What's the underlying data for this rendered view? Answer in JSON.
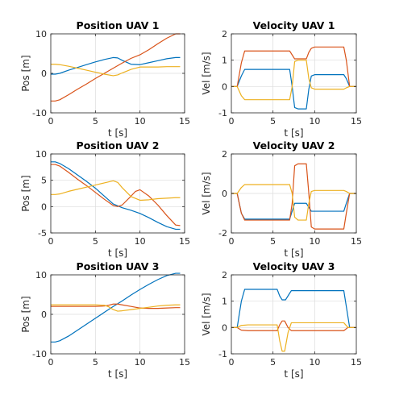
{
  "colors": [
    "#0072BD",
    "#D95319",
    "#EDB120"
  ],
  "chart_data": [
    {
      "type": "line",
      "title": "Position UAV 1",
      "xlabel": "t [s]",
      "ylabel": "Pos [m]",
      "xlim": [
        0,
        15
      ],
      "ylim": [
        -10,
        10
      ],
      "xticks": [
        0,
        5,
        10,
        15
      ],
      "yticks": [
        -10,
        0,
        10
      ],
      "grid": true,
      "series": [
        {
          "x": [
            0,
            0.5,
            1,
            2,
            3,
            4,
            5,
            6,
            7,
            7.5,
            8,
            9,
            10,
            11,
            12,
            13,
            14,
            14.5
          ],
          "y": [
            -0.2,
            -0.2,
            0,
            0.8,
            1.5,
            2.2,
            2.9,
            3.5,
            4,
            3.9,
            3.3,
            2.3,
            2.2,
            2.7,
            3.2,
            3.7,
            4,
            4
          ]
        },
        {
          "x": [
            0,
            0.5,
            1,
            2,
            3,
            4,
            5,
            6,
            7,
            8,
            9,
            10,
            11,
            12,
            13,
            14,
            14.5
          ],
          "y": [
            -7,
            -7,
            -6.7,
            -5.4,
            -4,
            -2.7,
            -1.3,
            0,
            1.3,
            2.6,
            3.8,
            4.7,
            6,
            7.5,
            8.9,
            10,
            10
          ]
        },
        {
          "x": [
            0,
            0.5,
            1,
            2,
            3,
            4,
            5,
            6,
            7,
            7.5,
            8,
            9,
            10,
            11,
            12,
            13,
            14,
            14.5
          ],
          "y": [
            2.3,
            2.3,
            2.2,
            1.8,
            1.3,
            0.8,
            0.3,
            -0.2,
            -0.6,
            -0.4,
            0.1,
            1,
            1.6,
            1.6,
            1.6,
            1.7,
            1.7,
            1.7
          ]
        }
      ]
    },
    {
      "type": "line",
      "title": "Velocity UAV 1",
      "xlabel": "t [s]",
      "ylabel": "Vel [m/s]",
      "xlim": [
        0,
        15
      ],
      "ylim": [
        -1,
        2
      ],
      "xticks": [
        0,
        5,
        10,
        15
      ],
      "yticks": [
        -1,
        0,
        1,
        2
      ],
      "grid": true,
      "series": [
        {
          "x": [
            0,
            0.7,
            1.2,
            1.6,
            2,
            7,
            7.3,
            7.6,
            8,
            9,
            9.3,
            9.6,
            10,
            13.5,
            13.8,
            14.2,
            15
          ],
          "y": [
            0,
            0,
            0.4,
            0.65,
            0.65,
            0.65,
            0,
            -0.8,
            -0.85,
            -0.85,
            -0.1,
            0.4,
            0.45,
            0.45,
            0.3,
            0,
            0
          ]
        },
        {
          "x": [
            0,
            0.7,
            1.2,
            1.6,
            2,
            7,
            7.3,
            7.6,
            8,
            9,
            9.3,
            9.6,
            10,
            13.5,
            13.8,
            14.2,
            15
          ],
          "y": [
            0,
            0,
            0.9,
            1.35,
            1.35,
            1.35,
            1.2,
            1.05,
            1.05,
            1.05,
            1.3,
            1.45,
            1.5,
            1.5,
            1,
            0,
            0
          ]
        },
        {
          "x": [
            0,
            0.7,
            1.2,
            1.6,
            2,
            7,
            7.3,
            7.6,
            8,
            9,
            9.3,
            9.6,
            10,
            13.5,
            13.8,
            14.2,
            15
          ],
          "y": [
            0,
            0,
            -0.35,
            -0.5,
            -0.5,
            -0.5,
            0,
            0.95,
            1.0,
            1.0,
            0.3,
            -0.05,
            -0.1,
            -0.1,
            -0.05,
            0,
            0
          ]
        }
      ]
    },
    {
      "type": "line",
      "title": "Position UAV 2",
      "xlabel": "t [s]",
      "ylabel": "Pos [m]",
      "xlim": [
        0,
        15
      ],
      "ylim": [
        -5,
        10
      ],
      "xticks": [
        0,
        5,
        10,
        15
      ],
      "yticks": [
        -5,
        0,
        5,
        10
      ],
      "grid": true,
      "series": [
        {
          "x": [
            0,
            0.5,
            1,
            2,
            3,
            4,
            5,
            6,
            7,
            8,
            9,
            10,
            11,
            12,
            13,
            14,
            14.5
          ],
          "y": [
            8.5,
            8.5,
            8.2,
            7.2,
            6,
            4.8,
            3.5,
            2,
            0.5,
            -0.2,
            -0.7,
            -1.3,
            -2.1,
            -3,
            -3.8,
            -4.3,
            -4.3
          ]
        },
        {
          "x": [
            0,
            0.5,
            1,
            2,
            3,
            4,
            5,
            6,
            7,
            7.5,
            8,
            9,
            9.5,
            10,
            11,
            12,
            13,
            14,
            14.5
          ],
          "y": [
            8,
            8,
            7.7,
            6.5,
            5.2,
            4,
            2.7,
            1.4,
            0.2,
            0,
            0.3,
            2,
            2.9,
            3.2,
            2,
            0.3,
            -1.7,
            -3.5,
            -3.6
          ]
        },
        {
          "x": [
            0,
            0.5,
            1,
            2,
            3,
            4,
            5,
            6,
            7,
            7.5,
            8,
            9,
            10,
            11,
            12,
            13,
            14,
            14.5
          ],
          "y": [
            2.3,
            2.3,
            2.4,
            2.9,
            3.3,
            3.7,
            4.1,
            4.5,
            4.9,
            4.6,
            3.6,
            1.9,
            1.2,
            1.3,
            1.5,
            1.6,
            1.7,
            1.7
          ]
        }
      ]
    },
    {
      "type": "line",
      "title": "Velocity UAV 2",
      "xlabel": "t [s]",
      "ylabel": "Vel [m/s]",
      "xlim": [
        0,
        15
      ],
      "ylim": [
        -2,
        2
      ],
      "xticks": [
        0,
        5,
        10,
        15
      ],
      "yticks": [
        -2,
        0,
        2
      ],
      "grid": true,
      "series": [
        {
          "x": [
            0,
            0.7,
            1.2,
            1.6,
            2,
            7,
            7.3,
            7.6,
            8,
            9,
            9.3,
            9.6,
            10,
            13.5,
            13.8,
            14.2,
            15
          ],
          "y": [
            0,
            0,
            -1,
            -1.3,
            -1.3,
            -1.3,
            -0.9,
            -0.5,
            -0.5,
            -0.5,
            -0.7,
            -0.9,
            -0.9,
            -0.9,
            -0.5,
            0,
            0
          ]
        },
        {
          "x": [
            0,
            0.7,
            1.2,
            1.6,
            2,
            7,
            7.3,
            7.6,
            8,
            9,
            9.3,
            9.6,
            10,
            13.5,
            13.8,
            14.2,
            15
          ],
          "y": [
            0,
            0,
            -1,
            -1.35,
            -1.35,
            -1.35,
            -0.5,
            1.4,
            1.5,
            1.5,
            0,
            -1.7,
            -1.8,
            -1.8,
            -1,
            0,
            0
          ]
        },
        {
          "x": [
            0,
            0.7,
            1.2,
            1.6,
            2,
            7,
            7.3,
            7.6,
            8,
            9,
            9.3,
            9.6,
            10,
            13.5,
            13.8,
            14.2,
            15
          ],
          "y": [
            0,
            0,
            0.3,
            0.45,
            0.45,
            0.45,
            0,
            -1.2,
            -1.35,
            -1.35,
            -0.5,
            0.1,
            0.15,
            0.15,
            0.1,
            0,
            0
          ]
        }
      ]
    },
    {
      "type": "line",
      "title": "Position UAV 3",
      "xlabel": "t [s]",
      "ylabel": "Pos [m]",
      "xlim": [
        0,
        15
      ],
      "ylim": [
        -10,
        10
      ],
      "xticks": [
        0,
        5,
        10,
        15
      ],
      "yticks": [
        -10,
        0,
        10
      ],
      "grid": true,
      "series": [
        {
          "x": [
            0,
            0.5,
            1,
            2,
            3,
            4,
            5,
            6,
            7,
            8,
            9,
            10,
            11,
            12,
            13,
            14,
            14.5
          ],
          "y": [
            -7,
            -7,
            -6.7,
            -5.5,
            -4,
            -2.5,
            -1,
            0.5,
            2,
            3.4,
            4.9,
            6.3,
            7.6,
            8.8,
            9.8,
            10.4,
            10.4
          ]
        },
        {
          "x": [
            0,
            0.5,
            1,
            2,
            3,
            4,
            5,
            6,
            6.5,
            7,
            7.5,
            8,
            9,
            10,
            11,
            12,
            13,
            14,
            14.5
          ],
          "y": [
            2,
            2,
            2,
            2,
            2,
            2,
            2,
            2.1,
            2.3,
            2.6,
            2.6,
            2.4,
            2,
            1.6,
            1.5,
            1.5,
            1.6,
            1.7,
            1.7
          ]
        },
        {
          "x": [
            0,
            0.5,
            1,
            2,
            3,
            4,
            5,
            6,
            6.5,
            7,
            7.5,
            8,
            9,
            10,
            11,
            12,
            13,
            14,
            14.5
          ],
          "y": [
            2.4,
            2.4,
            2.4,
            2.4,
            2.4,
            2.4,
            2.4,
            2.3,
            1.9,
            1.2,
            0.8,
            0.9,
            1.2,
            1.5,
            1.8,
            2.1,
            2.3,
            2.4,
            2.4
          ]
        }
      ]
    },
    {
      "type": "line",
      "title": "Velocity UAV 3",
      "xlabel": "t [s]",
      "ylabel": "Vel [m/s]",
      "xlim": [
        0,
        15
      ],
      "ylim": [
        -1,
        2
      ],
      "xticks": [
        0,
        5,
        10,
        15
      ],
      "yticks": [
        -1,
        0,
        1,
        2
      ],
      "grid": true,
      "series": [
        {
          "x": [
            0,
            0.7,
            1.2,
            1.6,
            2,
            5.5,
            5.8,
            6.1,
            6.5,
            6.8,
            7.2,
            13.5,
            13.8,
            14.2,
            15
          ],
          "y": [
            0,
            0,
            1,
            1.45,
            1.45,
            1.45,
            1.2,
            1.05,
            1.05,
            1.2,
            1.4,
            1.4,
            0.8,
            0,
            0
          ]
        },
        {
          "x": [
            0,
            0.7,
            1.2,
            2,
            5.5,
            5.8,
            6.1,
            6.4,
            6.8,
            7.2,
            13.5,
            14,
            15
          ],
          "y": [
            0,
            0,
            -0.1,
            -0.12,
            -0.12,
            0.1,
            0.25,
            0.25,
            0,
            -0.12,
            -0.12,
            0,
            0
          ]
        },
        {
          "x": [
            0,
            0.7,
            1.2,
            2,
            5.5,
            5.8,
            6.1,
            6.4,
            6.8,
            7.2,
            13.5,
            14,
            15
          ],
          "y": [
            0,
            0,
            0.08,
            0.1,
            0.1,
            -0.5,
            -0.9,
            -0.9,
            -0.2,
            0.18,
            0.18,
            0,
            0
          ]
        }
      ]
    }
  ]
}
